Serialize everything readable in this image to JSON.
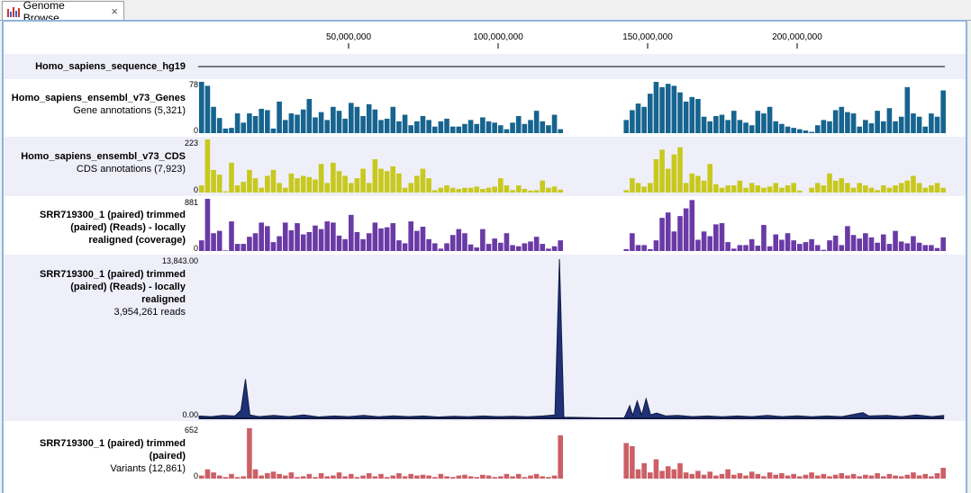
{
  "tab": {
    "title": "Genome Browse...",
    "icon": "genome-browser-icon",
    "close": "×"
  },
  "ruler": {
    "unit": "bp",
    "ticks_mb": [
      50,
      100,
      150,
      200
    ],
    "tick_labels": [
      "50,000,000",
      "100,000,000",
      "150,000,000",
      "200,000,000"
    ],
    "range_mb": [
      0,
      249
    ]
  },
  "tracks": {
    "sequence": {
      "name": "Homo_sapiens_sequence_hg19"
    },
    "genes": {
      "name": "Homo_sapiens_ensembl_v73_Genes",
      "sub": "Gene annotations (5,321)",
      "max": "78",
      "min": "0",
      "color": "#16648f",
      "segments": [
        {
          "start_mb": 0,
          "values": [
            78,
            72,
            40,
            23,
            7,
            8,
            30,
            16,
            30,
            26,
            37,
            35,
            7,
            48,
            20,
            30,
            28,
            36,
            52,
            24,
            32,
            20,
            40,
            34,
            22,
            46,
            40,
            26,
            44,
            36,
            20,
            22,
            40,
            18,
            28,
            12,
            18,
            26,
            20,
            10,
            18,
            22,
            10,
            10,
            14,
            20,
            14,
            24,
            18,
            16,
            12,
            6,
            16,
            26,
            14,
            20,
            34,
            18,
            12,
            28,
            6
          ]
        },
        {
          "start_mb": 142,
          "values": [
            20,
            35,
            45,
            40,
            60,
            78,
            70,
            75,
            72,
            62,
            48,
            55,
            52,
            25,
            18,
            26,
            28,
            20,
            34,
            20,
            16,
            12,
            34,
            30,
            40,
            18,
            14,
            10,
            8,
            6,
            4,
            2,
            12,
            20,
            18,
            35,
            40,
            32,
            30,
            10,
            20,
            15,
            34,
            18,
            38,
            18,
            25,
            70,
            30,
            25,
            10,
            30,
            25,
            65
          ]
        }
      ]
    },
    "cds": {
      "name": "Homo_sapiens_ensembl_v73_CDS",
      "sub": "CDS annotations (7,923)",
      "max": "223",
      "min": "0",
      "color": "#c8c81e",
      "segments": [
        {
          "start_mb": 0,
          "values": [
            30,
            223,
            95,
            75,
            5,
            125,
            30,
            45,
            95,
            60,
            20,
            70,
            95,
            40,
            20,
            80,
            60,
            70,
            65,
            55,
            120,
            40,
            125,
            90,
            70,
            40,
            60,
            100,
            40,
            140,
            100,
            90,
            110,
            80,
            20,
            40,
            70,
            100,
            60,
            10,
            20,
            30,
            20,
            15,
            20,
            20,
            25,
            15,
            20,
            25,
            60,
            30,
            10,
            30,
            15,
            8,
            10,
            50,
            20,
            25,
            12
          ]
        },
        {
          "start_mb": 142,
          "values": [
            10,
            60,
            40,
            25,
            40,
            140,
            180,
            100,
            160,
            190,
            40,
            80,
            70,
            50,
            120,
            35,
            20,
            30,
            30,
            50,
            20,
            40,
            30,
            20,
            25,
            40,
            20,
            30,
            40,
            8,
            0,
            20,
            40,
            30,
            80,
            50,
            60,
            40,
            20,
            40,
            30,
            20,
            10,
            30,
            20,
            30,
            40,
            50,
            70,
            40,
            20,
            30,
            40,
            20
          ]
        }
      ]
    },
    "coverage": {
      "name_lines": [
        "SRR719300_1 (paired) trimmed",
        "(paired) (Reads) - locally",
        "realigned (coverage)"
      ],
      "max": "881",
      "min": "0",
      "color": "#6a3aa6",
      "segments": [
        {
          "start_mb": 0,
          "values": [
            180,
            881,
            300,
            340,
            10,
            500,
            120,
            120,
            240,
            300,
            480,
            420,
            150,
            250,
            480,
            350,
            470,
            280,
            320,
            430,
            370,
            500,
            480,
            260,
            200,
            610,
            320,
            200,
            300,
            480,
            380,
            400,
            470,
            180,
            130,
            500,
            340,
            410,
            200,
            130,
            40,
            130,
            270,
            370,
            300,
            110,
            60,
            370,
            120,
            210,
            140,
            300,
            100,
            80,
            130,
            160,
            240,
            120,
            40,
            80,
            180
          ]
        },
        {
          "start_mb": 142,
          "values": [
            30,
            300,
            100,
            100,
            30,
            180,
            560,
            650,
            330,
            590,
            720,
            860,
            190,
            330,
            250,
            450,
            470,
            150,
            40,
            100,
            100,
            200,
            90,
            440,
            80,
            280,
            190,
            300,
            180,
            120,
            150,
            200,
            100,
            20,
            180,
            260,
            100,
            420,
            270,
            210,
            300,
            230,
            140,
            280,
            120,
            340,
            160,
            130,
            250,
            140,
            100,
            100,
            50,
            230
          ]
        }
      ]
    },
    "reads": {
      "name_lines": [
        "SRR719300_1 (paired) trimmed",
        "(paired) (Reads) - locally",
        "realigned"
      ],
      "sub": "3,954,261 reads",
      "max": "13,843.00",
      "min": "0.00",
      "color": "#1f3278",
      "points": [
        [
          0,
          200
        ],
        [
          4,
          150
        ],
        [
          8,
          250
        ],
        [
          12,
          200
        ],
        [
          14,
          700
        ],
        [
          15.5,
          3400
        ],
        [
          17,
          300
        ],
        [
          20,
          150
        ],
        [
          25,
          250
        ],
        [
          30,
          150
        ],
        [
          35,
          300
        ],
        [
          40,
          120
        ],
        [
          45,
          200
        ],
        [
          50,
          150
        ],
        [
          55,
          250
        ],
        [
          60,
          130
        ],
        [
          65,
          220
        ],
        [
          70,
          150
        ],
        [
          75,
          200
        ],
        [
          80,
          120
        ],
        [
          85,
          180
        ],
        [
          90,
          130
        ],
        [
          95,
          200
        ],
        [
          100,
          150
        ],
        [
          105,
          180
        ],
        [
          110,
          130
        ],
        [
          115,
          200
        ],
        [
          119,
          300
        ],
        [
          120.5,
          13843
        ],
        [
          122,
          100
        ],
        [
          142,
          0
        ],
        [
          142.5,
          200
        ],
        [
          144,
          1100
        ],
        [
          145,
          250
        ],
        [
          146.5,
          1500
        ],
        [
          148,
          300
        ],
        [
          149.5,
          1700
        ],
        [
          151,
          300
        ],
        [
          153,
          450
        ],
        [
          156,
          200
        ],
        [
          160,
          250
        ],
        [
          165,
          150
        ],
        [
          170,
          200
        ],
        [
          175,
          130
        ],
        [
          180,
          200
        ],
        [
          185,
          150
        ],
        [
          190,
          250
        ],
        [
          195,
          150
        ],
        [
          200,
          220
        ],
        [
          205,
          130
        ],
        [
          210,
          200
        ],
        [
          215,
          150
        ],
        [
          222,
          500
        ],
        [
          224,
          200
        ],
        [
          230,
          250
        ],
        [
          235,
          150
        ],
        [
          240,
          300
        ],
        [
          245,
          150
        ],
        [
          249,
          250
        ]
      ]
    },
    "variants": {
      "name_lines": [
        "SRR719300_1 (paired) trimmed",
        "(paired)"
      ],
      "sub": "Variants (12,861)",
      "max": "652",
      "min": "0",
      "color": "#cc5f66",
      "segments": [
        {
          "start_mb": 0,
          "values": [
            40,
            120,
            80,
            40,
            20,
            60,
            20,
            30,
            652,
            120,
            40,
            70,
            90,
            60,
            40,
            80,
            20,
            30,
            60,
            20,
            70,
            30,
            40,
            80,
            30,
            60,
            20,
            40,
            70,
            30,
            60,
            20,
            40,
            70,
            30,
            60,
            40,
            50,
            40,
            20,
            60,
            30,
            20,
            40,
            50,
            30,
            20,
            50,
            40,
            20,
            30,
            60,
            30,
            60,
            20,
            40,
            60,
            30,
            20,
            40,
            560
          ]
        },
        {
          "start_mb": 142,
          "values": [
            460,
            420,
            120,
            200,
            80,
            250,
            100,
            160,
            120,
            200,
            80,
            60,
            100,
            50,
            90,
            40,
            60,
            120,
            50,
            70,
            40,
            90,
            60,
            30,
            80,
            50,
            70,
            40,
            60,
            30,
            50,
            80,
            40,
            60,
            30,
            50,
            70,
            40,
            60,
            30,
            50,
            40,
            70,
            30,
            60,
            40,
            30,
            50,
            80,
            40,
            60,
            30,
            70,
            140
          ]
        }
      ]
    }
  }
}
